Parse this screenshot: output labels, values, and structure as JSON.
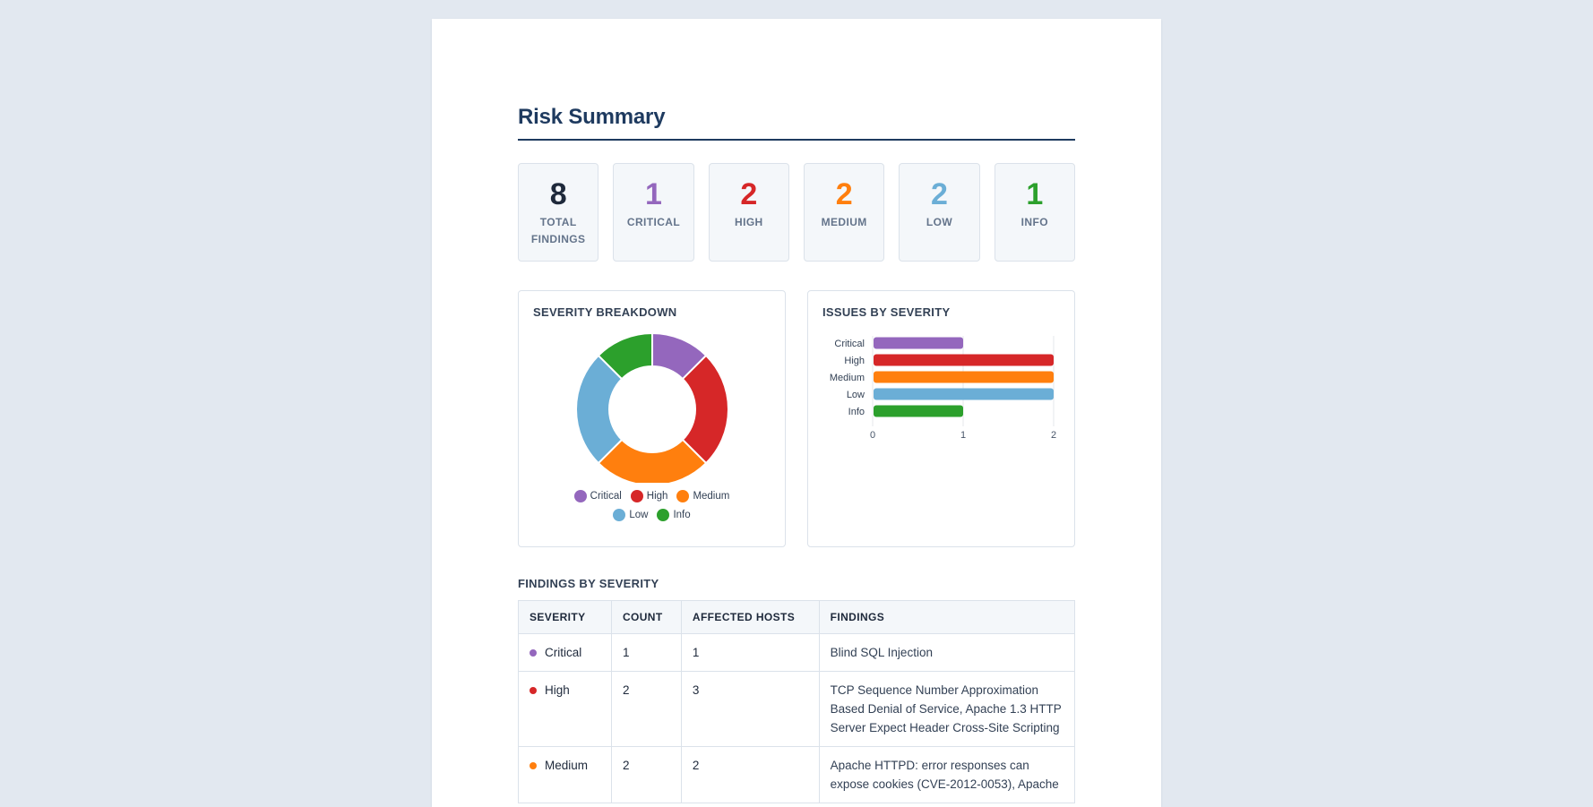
{
  "title": "Risk Summary",
  "stats": [
    {
      "value": "8",
      "label": "TOTAL FINDINGS",
      "color": "#1e293b"
    },
    {
      "value": "1",
      "label": "CRITICAL",
      "color": "#9467bd"
    },
    {
      "value": "2",
      "label": "HIGH",
      "color": "#d62728"
    },
    {
      "value": "2",
      "label": "MEDIUM",
      "color": "#ff7f0e"
    },
    {
      "value": "2",
      "label": "LOW",
      "color": "#6baed6"
    },
    {
      "value": "1",
      "label": "INFO",
      "color": "#2ca02c"
    }
  ],
  "charts": {
    "donut_title": "SEVERITY BREAKDOWN",
    "bar_title": "ISSUES BY SEVERITY"
  },
  "chart_data": [
    {
      "type": "pie",
      "title": "SEVERITY BREAKDOWN",
      "categories": [
        "Critical",
        "High",
        "Medium",
        "Low",
        "Info"
      ],
      "values": [
        1,
        2,
        2,
        2,
        1
      ],
      "colors": [
        "#9467bd",
        "#d62728",
        "#ff7f0e",
        "#6baed6",
        "#2ca02c"
      ],
      "legend": "bottom"
    },
    {
      "type": "bar",
      "orientation": "horizontal",
      "title": "ISSUES BY SEVERITY",
      "categories": [
        "Critical",
        "High",
        "Medium",
        "Low",
        "Info"
      ],
      "values": [
        1,
        2,
        2,
        2,
        1
      ],
      "colors": [
        "#9467bd",
        "#d62728",
        "#ff7f0e",
        "#6baed6",
        "#2ca02c"
      ],
      "xlim": [
        0,
        2
      ],
      "xticks": [
        "0",
        "1",
        "2"
      ],
      "grid": true
    }
  ],
  "table": {
    "section_title": "FINDINGS BY SEVERITY",
    "headers": [
      "SEVERITY",
      "COUNT",
      "AFFECTED HOSTS",
      "FINDINGS"
    ],
    "rows": [
      {
        "severity": "Critical",
        "color": "#9467bd",
        "count": "1",
        "hosts": "1",
        "findings": "Blind SQL Injection"
      },
      {
        "severity": "High",
        "color": "#d62728",
        "count": "2",
        "hosts": "3",
        "findings": "TCP Sequence Number Approximation Based Denial of Service, Apache 1.3 HTTP Server Expect Header Cross-Site Scripting"
      },
      {
        "severity": "Medium",
        "color": "#ff7f0e",
        "count": "2",
        "hosts": "2",
        "findings": "Apache HTTPD: error responses can expose cookies (CVE-2012-0053), Apache"
      }
    ]
  }
}
